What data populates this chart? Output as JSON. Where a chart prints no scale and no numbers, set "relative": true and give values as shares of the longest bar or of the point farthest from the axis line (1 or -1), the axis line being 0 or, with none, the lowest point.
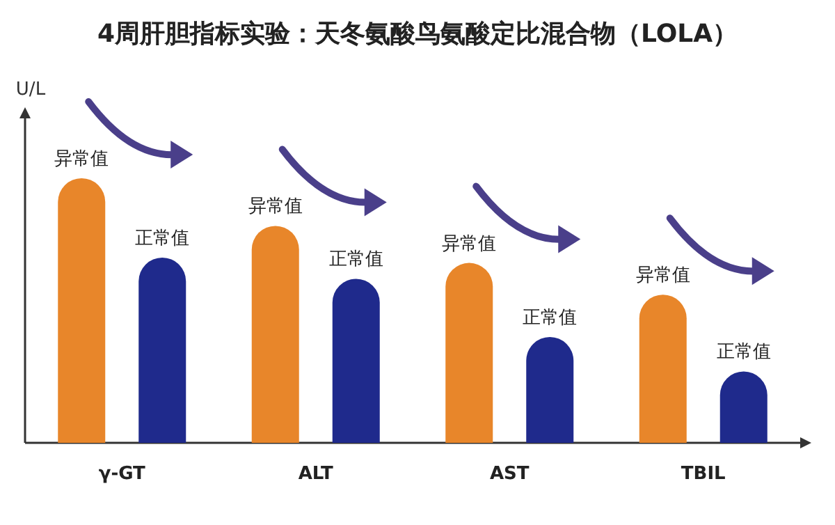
{
  "chart_data": {
    "type": "bar",
    "title": "4周肝胆指标实验：天冬氨酸鸟氨酸定比混合物（LOLA）",
    "ylabel": "U/L",
    "relative": true,
    "categories": [
      "γ-GT",
      "ALT",
      "AST",
      "TBIL"
    ],
    "series": [
      {
        "name": "异常值",
        "color": "#e8862a",
        "values": [
          1,
          0.82,
          0.68,
          0.56
        ]
      },
      {
        "name": "正常值",
        "color": "#1f2a8c",
        "values": [
          0.7,
          0.62,
          0.4,
          0.27
        ]
      }
    ]
  }
}
